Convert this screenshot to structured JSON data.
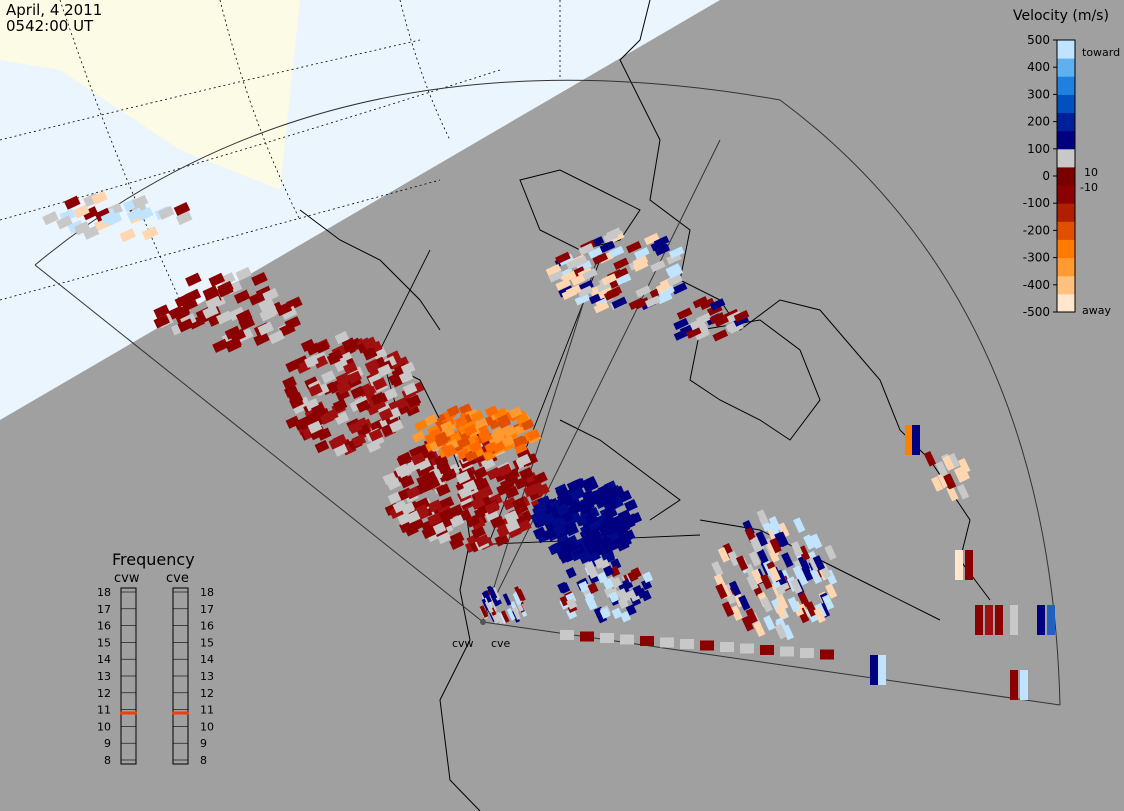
{
  "header": {
    "date": "April, 4 2011",
    "time": "0542:00 UT"
  },
  "velocity_scale": {
    "title": "Velocity (m/s)",
    "ticks": [
      "500",
      "400",
      "300",
      "200",
      "100",
      "0",
      "-100",
      "-200",
      "-300",
      "-400",
      "-500"
    ],
    "toward_label": "toward",
    "away_label": "away",
    "pos_threshold_label": "10",
    "neg_threshold_label": "-10",
    "colors": [
      "#ffe6cc",
      "#ffc080",
      "#ff9a30",
      "#ff7a00",
      "#e05000",
      "#b02000",
      "#8b0000",
      "#7a0000",
      "#c8c8c8",
      "#000080",
      "#00209a",
      "#0050c0",
      "#2080e0",
      "#60b0f0",
      "#c0e4ff"
    ]
  },
  "frequency": {
    "title": "Frequency",
    "left_label": "cvw",
    "right_label": "cve",
    "ticks": [
      "18",
      "17",
      "16",
      "15",
      "14",
      "13",
      "12",
      "11",
      "10",
      "9",
      "8"
    ],
    "cvw_mhz": 10.8,
    "cve_mhz": 10.8,
    "marker_color": "#e84010"
  },
  "radars": {
    "west": "cvw",
    "east": "cve"
  },
  "colors": {
    "background": "#a0a0a0",
    "daylight": "#fbfbe6",
    "ocean_day": "#eaf5fd"
  }
}
